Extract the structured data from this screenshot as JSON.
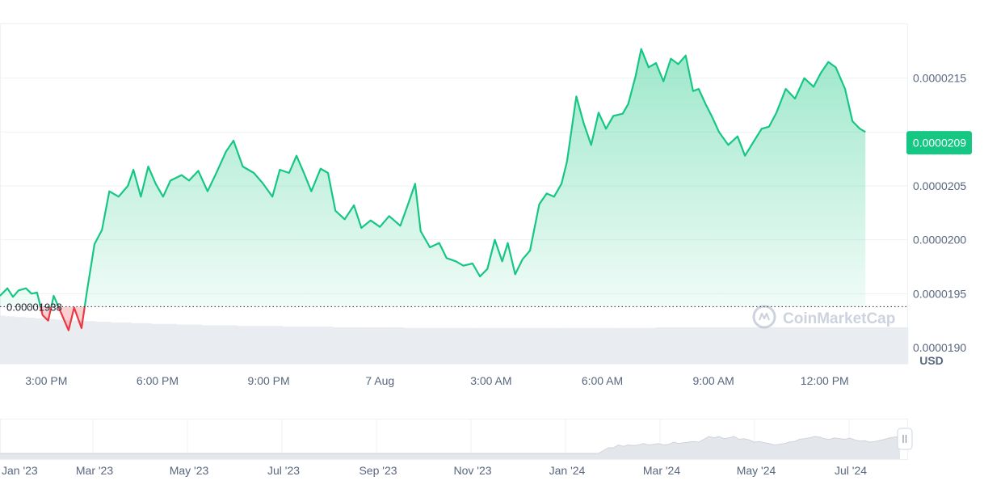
{
  "chart_data": [
    {
      "type": "area",
      "currency_label": "USD",
      "baseline_value": 1.938e-05,
      "baseline_label": "0.00001938",
      "current_value": 2.09e-05,
      "current_label": "0.0000209",
      "y_range": [
        1.885e-05,
        2.2e-05
      ],
      "y_ticks": [
        {
          "value": 2.15e-05,
          "label": "0.0000215"
        },
        {
          "value": 2.1e-05,
          "label": ""
        },
        {
          "value": 2.05e-05,
          "label": "0.0000205"
        },
        {
          "value": 2e-05,
          "label": "0.0000200"
        },
        {
          "value": 1.95e-05,
          "label": "0.0000195"
        },
        {
          "value": 1.9e-05,
          "label": "0.0000190"
        }
      ],
      "x_range": [
        13.0,
        37.5
      ],
      "x_ticks": [
        {
          "hour": 14.25,
          "label": "3:00 PM"
        },
        {
          "hour": 17.25,
          "label": "6:00 PM"
        },
        {
          "hour": 20.25,
          "label": "9:00 PM"
        },
        {
          "hour": 23.25,
          "label": "7 Aug"
        },
        {
          "hour": 26.25,
          "label": "3:00 AM"
        },
        {
          "hour": 29.25,
          "label": "6:00 AM"
        },
        {
          "hour": 32.25,
          "label": "9:00 AM"
        },
        {
          "hour": 35.25,
          "label": "12:00 PM"
        }
      ],
      "grid": true,
      "series": [
        {
          "values": [
            [
              13.0,
              1.948e-05
            ],
            [
              13.2,
              1.955e-05
            ],
            [
              13.35,
              1.947e-05
            ],
            [
              13.5,
              1.953e-05
            ],
            [
              13.7,
              1.955e-05
            ],
            [
              13.85,
              1.95e-05
            ],
            [
              14.0,
              1.951e-05
            ],
            [
              14.15,
              1.93e-05
            ],
            [
              14.3,
              1.925e-05
            ],
            [
              14.45,
              1.948e-05
            ],
            [
              14.7,
              1.928e-05
            ],
            [
              14.85,
              1.916e-05
            ],
            [
              15.0,
              1.937e-05
            ],
            [
              15.2,
              1.918e-05
            ],
            [
              15.35,
              1.953e-05
            ],
            [
              15.55,
              1.996e-05
            ],
            [
              15.75,
              2.009e-05
            ],
            [
              15.95,
              2.045e-05
            ],
            [
              16.2,
              2.04e-05
            ],
            [
              16.45,
              2.05e-05
            ],
            [
              16.6,
              2.065e-05
            ],
            [
              16.8,
              2.04e-05
            ],
            [
              17.0,
              2.068e-05
            ],
            [
              17.2,
              2.052e-05
            ],
            [
              17.4,
              2.04e-05
            ],
            [
              17.6,
              2.055e-05
            ],
            [
              17.9,
              2.06e-05
            ],
            [
              18.1,
              2.055e-05
            ],
            [
              18.35,
              2.064e-05
            ],
            [
              18.6,
              2.045e-05
            ],
            [
              18.85,
              2.063e-05
            ],
            [
              19.1,
              2.082e-05
            ],
            [
              19.3,
              2.092e-05
            ],
            [
              19.55,
              2.068e-05
            ],
            [
              19.85,
              2.062e-05
            ],
            [
              20.1,
              2.052e-05
            ],
            [
              20.35,
              2.04e-05
            ],
            [
              20.55,
              2.065e-05
            ],
            [
              20.8,
              2.062e-05
            ],
            [
              21.0,
              2.078e-05
            ],
            [
              21.2,
              2.062e-05
            ],
            [
              21.4,
              2.045e-05
            ],
            [
              21.65,
              2.066e-05
            ],
            [
              21.85,
              2.062e-05
            ],
            [
              22.05,
              2.027e-05
            ],
            [
              22.3,
              2.019e-05
            ],
            [
              22.55,
              2.032e-05
            ],
            [
              22.75,
              2.011e-05
            ],
            [
              23.0,
              2.018e-05
            ],
            [
              23.25,
              2.012e-05
            ],
            [
              23.5,
              2.022e-05
            ],
            [
              23.8,
              2.013e-05
            ],
            [
              24.0,
              2.032e-05
            ],
            [
              24.2,
              2.052e-05
            ],
            [
              24.35,
              2.008e-05
            ],
            [
              24.6,
              1.993e-05
            ],
            [
              24.85,
              1.997e-05
            ],
            [
              25.05,
              1.983e-05
            ],
            [
              25.3,
              1.98e-05
            ],
            [
              25.5,
              1.976e-05
            ],
            [
              25.75,
              1.978e-05
            ],
            [
              25.95,
              1.966e-05
            ],
            [
              26.15,
              1.973e-05
            ],
            [
              26.35,
              2e-05
            ],
            [
              26.55,
              1.98e-05
            ],
            [
              26.7,
              1.997e-05
            ],
            [
              26.9,
              1.968e-05
            ],
            [
              27.1,
              1.982e-05
            ],
            [
              27.3,
              1.99e-05
            ],
            [
              27.55,
              2.033e-05
            ],
            [
              27.75,
              2.043e-05
            ],
            [
              27.95,
              2.04e-05
            ],
            [
              28.15,
              2.052e-05
            ],
            [
              28.3,
              2.073e-05
            ],
            [
              28.55,
              2.133e-05
            ],
            [
              28.75,
              2.108e-05
            ],
            [
              28.95,
              2.088e-05
            ],
            [
              29.15,
              2.118e-05
            ],
            [
              29.35,
              2.103e-05
            ],
            [
              29.55,
              2.115e-05
            ],
            [
              29.8,
              2.117e-05
            ],
            [
              29.95,
              2.126e-05
            ],
            [
              30.15,
              2.152e-05
            ],
            [
              30.3,
              2.177e-05
            ],
            [
              30.5,
              2.16e-05
            ],
            [
              30.7,
              2.164e-05
            ],
            [
              30.9,
              2.147e-05
            ],
            [
              31.1,
              2.168e-05
            ],
            [
              31.3,
              2.163e-05
            ],
            [
              31.5,
              2.171e-05
            ],
            [
              31.7,
              2.138e-05
            ],
            [
              31.85,
              2.14e-05
            ],
            [
              32.05,
              2.125e-05
            ],
            [
              32.2,
              2.115e-05
            ],
            [
              32.4,
              2.1e-05
            ],
            [
              32.65,
              2.088e-05
            ],
            [
              32.9,
              2.096e-05
            ],
            [
              33.1,
              2.078e-05
            ],
            [
              33.35,
              2.092e-05
            ],
            [
              33.55,
              2.103e-05
            ],
            [
              33.75,
              2.105e-05
            ],
            [
              33.95,
              2.118e-05
            ],
            [
              34.2,
              2.14e-05
            ],
            [
              34.45,
              2.131e-05
            ],
            [
              34.7,
              2.15e-05
            ],
            [
              34.95,
              2.142e-05
            ],
            [
              35.15,
              2.155e-05
            ],
            [
              35.35,
              2.165e-05
            ],
            [
              35.55,
              2.16e-05
            ],
            [
              35.8,
              2.14e-05
            ],
            [
              36.0,
              2.11e-05
            ],
            [
              36.2,
              2.103e-05
            ],
            [
              36.35,
              2.1e-05
            ]
          ]
        }
      ]
    },
    {
      "type": "area",
      "role": "navigator",
      "x_ticks": [
        "Jan '23",
        "Mar '23",
        "May '23",
        "Jul '23",
        "Sep '23",
        "Nov '23",
        "Jan '24",
        "Mar '24",
        "May '24",
        "Jul '24"
      ],
      "values": [
        0.2,
        0.2,
        0.2,
        0.2,
        0.2,
        0.2,
        0.2,
        0.2,
        0.2,
        0.2,
        0.2,
        0.2,
        0.2,
        0.2,
        0.2,
        0.2,
        0.2,
        0.2,
        0.2,
        0.2,
        0.2,
        0.2,
        0.2,
        0.2,
        0.2,
        0.2,
        0.2,
        0.2,
        0.2,
        0.2,
        0.2,
        0.2,
        0.2,
        0.2,
        0.2,
        0.2,
        0.2,
        0.2,
        0.2,
        0.2,
        0.2,
        0.2,
        0.2,
        0.2,
        0.2,
        0.2,
        0.2,
        0.2,
        0.2,
        0.2,
        0.2,
        0.2,
        0.2,
        0.2,
        0.2,
        0.2,
        0.2,
        0.2,
        0.2,
        0.2,
        0.2,
        0.2,
        0.2,
        0.2,
        0.2,
        0.2,
        0.2,
        0.2,
        0.2,
        0.2,
        0.2,
        0.2,
        0.2,
        0.2,
        0.2,
        0.2,
        0.2,
        0.2,
        0.2,
        0.2,
        0.2,
        0.2,
        0.2,
        0.2,
        0.2,
        0.2,
        0.2,
        0.2,
        0.2,
        0.2,
        0.2,
        0.2,
        0.2,
        0.2,
        0.2,
        0.2,
        0.2,
        0.2,
        0.2,
        0.2,
        0.2,
        0.2,
        0.2,
        0.2,
        0.2,
        0.2,
        0.2,
        0.2,
        0.2,
        0.2,
        0.2,
        0.2,
        0.2,
        0.2,
        0.2,
        0.2,
        0.2,
        0.2,
        0.2,
        0.2,
        0.3,
        0.4,
        0.4,
        0.5,
        0.45,
        0.5,
        0.48,
        0.5,
        0.55,
        0.5,
        0.52,
        0.55,
        0.5,
        0.52,
        0.6,
        0.55,
        0.58,
        0.6,
        0.62,
        0.6,
        0.7,
        0.8,
        0.75,
        0.8,
        0.72,
        0.75,
        0.8,
        0.7,
        0.72,
        0.68,
        0.6,
        0.62,
        0.58,
        0.55,
        0.5,
        0.52,
        0.55,
        0.6,
        0.62,
        0.7,
        0.72,
        0.75,
        0.8,
        0.78,
        0.72,
        0.7,
        0.75,
        0.72,
        0.7,
        0.74,
        0.68,
        0.64,
        0.65,
        0.6,
        0.62,
        0.66,
        0.7,
        0.75,
        0.78,
        0.8
      ]
    }
  ],
  "volume": {
    "values": [
      0.7,
      0.69,
      0.69,
      0.68,
      0.68,
      0.67,
      0.67,
      0.66,
      0.66,
      0.65,
      0.65,
      0.64,
      0.64,
      0.63,
      0.63,
      0.63,
      0.62,
      0.62,
      0.62,
      0.61,
      0.61,
      0.61,
      0.6,
      0.6,
      0.6,
      0.6,
      0.59,
      0.59,
      0.59,
      0.59,
      0.58,
      0.58,
      0.58,
      0.58,
      0.58,
      0.57,
      0.57,
      0.57,
      0.57,
      0.57,
      0.56,
      0.56,
      0.56,
      0.56,
      0.56,
      0.56,
      0.56,
      0.55,
      0.55,
      0.55,
      0.55,
      0.55,
      0.55,
      0.55,
      0.55,
      0.55,
      0.54,
      0.54,
      0.54,
      0.54,
      0.54,
      0.54,
      0.54,
      0.54,
      0.54,
      0.54,
      0.53,
      0.53,
      0.53,
      0.53,
      0.53,
      0.53,
      0.53,
      0.53,
      0.53,
      0.53,
      0.53,
      0.53,
      0.53,
      0.53,
      0.52,
      0.52,
      0.52,
      0.52,
      0.52,
      0.52,
      0.52,
      0.52,
      0.52,
      0.52,
      0.52,
      0.52,
      0.52,
      0.52,
      0.52,
      0.52,
      0.52,
      0.52,
      0.52,
      0.52,
      0.52,
      0.52,
      0.52,
      0.52,
      0.52,
      0.52,
      0.52,
      0.52,
      0.52,
      0.52,
      0.52,
      0.52,
      0.52,
      0.52,
      0.52,
      0.52,
      0.52,
      0.52,
      0.52,
      0.52,
      0.52,
      0.52,
      0.52,
      0.52,
      0.52,
      0.52,
      0.52,
      0.52,
      0.52,
      0.52,
      0.53,
      0.53,
      0.53,
      0.53,
      0.53,
      0.53,
      0.53,
      0.53,
      0.53,
      0.53,
      0.53,
      0.53,
      0.53,
      0.53,
      0.53,
      0.53,
      0.53,
      0.53,
      0.53,
      0.53,
      0.53,
      0.53,
      0.53,
      0.53,
      0.53,
      0.53,
      0.53,
      0.53,
      0.53,
      0.53,
      0.53,
      0.53,
      0.53,
      0.53,
      0.53,
      0.53,
      0.53,
      0.53,
      0.53,
      0.53,
      0.53,
      0.53,
      0.53,
      0.53,
      0.53,
      0.53,
      0.53,
      0.53,
      0.53,
      0.53
    ]
  },
  "watermark": {
    "text": "CoinMarketCap",
    "icon": "coinmarketcap-logo-icon"
  },
  "colors": {
    "line_up": "#16c784",
    "line_down": "#ea3943",
    "price_tag": "#16c784",
    "axis_text": "#58667e",
    "grid": "#eff2f5",
    "volume": "#e9ecf0",
    "navigator_fill": "#e3e6ea",
    "navigator_line": "#cfd4da",
    "baseline_dots": "#222531"
  }
}
